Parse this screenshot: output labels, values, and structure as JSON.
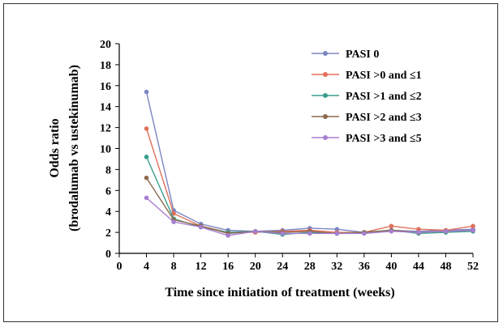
{
  "chart_data": {
    "type": "line",
    "title": "",
    "xlabel": "Time since initiation of treatment (weeks)",
    "ylabel_line1": "Odds ratio",
    "ylabel_line2": "(brodalumab vs ustekinumab)",
    "xlim": [
      0,
      52
    ],
    "ylim": [
      0,
      20
    ],
    "x_ticks": [
      0,
      4,
      8,
      12,
      16,
      20,
      24,
      28,
      32,
      36,
      40,
      44,
      48,
      52
    ],
    "y_ticks": [
      0,
      2,
      4,
      6,
      8,
      10,
      12,
      14,
      16,
      18,
      20
    ],
    "grid": false,
    "legend_position": "top-right",
    "x": [
      4,
      8,
      12,
      16,
      20,
      24,
      28,
      32,
      36,
      40,
      44,
      48,
      52
    ],
    "series": [
      {
        "name": "PASI 0",
        "color": "#7b86c2",
        "values": [
          15.4,
          4.1,
          2.8,
          2.2,
          2.1,
          2.2,
          2.4,
          2.3,
          2.0,
          2.2,
          2.1,
          2.2,
          2.3
        ]
      },
      {
        "name": "PASI >0 and ≤1",
        "color": "#e0705a",
        "values": [
          11.9,
          3.8,
          2.6,
          2.0,
          2.0,
          2.1,
          2.2,
          2.0,
          2.0,
          2.6,
          2.3,
          2.2,
          2.6
        ]
      },
      {
        "name": "PASI >1 and ≤2",
        "color": "#3a9e8c",
        "values": [
          9.2,
          3.3,
          2.5,
          2.0,
          2.1,
          1.8,
          2.0,
          1.9,
          2.0,
          2.2,
          1.9,
          2.0,
          2.1
        ]
      },
      {
        "name": "PASI >2 and ≤3",
        "color": "#8b6a4f",
        "values": [
          7.2,
          3.2,
          2.6,
          1.9,
          2.1,
          2.0,
          2.1,
          1.9,
          2.0,
          2.2,
          2.0,
          2.1,
          2.2
        ]
      },
      {
        "name": "PASI >3 and ≤5",
        "color": "#a77fd0",
        "values": [
          5.3,
          3.0,
          2.5,
          1.7,
          2.1,
          1.9,
          1.9,
          1.9,
          1.9,
          2.1,
          2.0,
          2.1,
          2.2
        ]
      }
    ]
  }
}
